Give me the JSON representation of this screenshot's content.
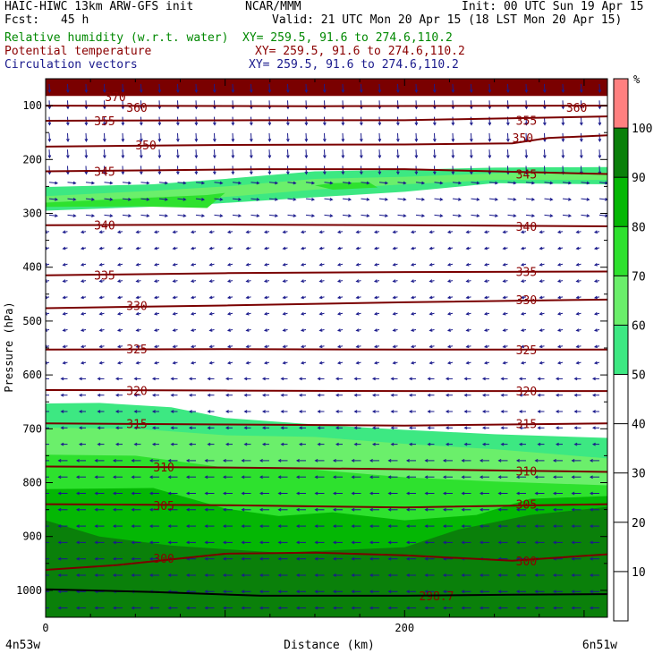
{
  "header": {
    "model": "HAIC-HIWC 13km ARW-GFS init",
    "center": "NCAR/MMM",
    "init": "Init: 00 UTC Sun 19 Apr 15",
    "fcst_label": "Fcst:",
    "fcst_value": "45 h",
    "valid": "Valid: 21 UTC Mon 20 Apr 15 (18 LST Mon 20 Apr 15)",
    "fields": [
      {
        "name": "Relative humidity (w.r.t. water)",
        "xy": "XY= 259.5, 91.6 to 274.6,110.2",
        "color": "#008800"
      },
      {
        "name": "Potential temperature",
        "xy": "XY= 259.5, 91.6 to 274.6,110.2",
        "color": "#8b0000"
      },
      {
        "name": "Circulation vectors",
        "xy": "XY= 259.5, 91.6 to 274.6,110.2",
        "color": "#1a1a8c"
      }
    ]
  },
  "chart_data": {
    "type": "contour",
    "xlabel": "Distance (km)",
    "ylabel": "Pressure (hPa)",
    "xlim": [
      0,
      313
    ],
    "ylim": [
      1050,
      50
    ],
    "x_ticks": [
      0,
      200
    ],
    "y_ticks": [
      100,
      200,
      300,
      400,
      500,
      600,
      700,
      800,
      900,
      1000
    ],
    "x_endpoints": [
      "4n53w",
      "6n51w"
    ],
    "colorbar": {
      "unit": "%",
      "levels": [
        10,
        20,
        30,
        40,
        50,
        60,
        70,
        80,
        90,
        100
      ],
      "colors": [
        "#ffffff",
        "#ffffff",
        "#ffffff",
        "#ffffff",
        "#ffffff",
        "#3de882",
        "#6bef6b",
        "#2ee12e",
        "#04b704",
        "#0a800a",
        "#ff8080"
      ]
    },
    "rh_bands": [
      {
        "range": "50-60",
        "color": "#3de882",
        "polys": [
          [
            [
              0,
              251
            ],
            [
              60,
              246
            ],
            [
              100,
              236
            ],
            [
              150,
              222
            ],
            [
              200,
              219
            ],
            [
              250,
              215
            ],
            [
              313,
              214
            ],
            [
              313,
              246
            ],
            [
              250,
              244
            ],
            [
              200,
              260
            ],
            [
              150,
              270
            ],
            [
              80,
              285
            ],
            [
              0,
              295
            ]
          ],
          [
            [
              0,
              653
            ],
            [
              30,
              652
            ],
            [
              70,
              660
            ],
            [
              100,
              680
            ],
            [
              150,
              692
            ],
            [
              200,
              702
            ],
            [
              250,
              710
            ],
            [
              313,
              717
            ],
            [
              313,
              1050
            ],
            [
              0,
              1050
            ]
          ]
        ]
      },
      {
        "range": "60-70",
        "color": "#6bef6b",
        "polys": [
          [
            [
              0,
              268
            ],
            [
              60,
              258
            ],
            [
              100,
              250
            ],
            [
              150,
              236
            ],
            [
              200,
              232
            ],
            [
              250,
              226
            ],
            [
              313,
              224
            ],
            [
              313,
              238
            ],
            [
              250,
              238
            ],
            [
              200,
              246
            ],
            [
              150,
              256
            ],
            [
              80,
              275
            ],
            [
              0,
              282
            ]
          ],
          [
            [
              0,
              698
            ],
            [
              50,
              700
            ],
            [
              100,
              712
            ],
            [
              150,
              715
            ],
            [
              200,
              728
            ],
            [
              250,
              738
            ],
            [
              313,
              755
            ],
            [
              313,
              1050
            ],
            [
              0,
              1050
            ]
          ]
        ]
      },
      {
        "range": "70-80",
        "color": "#2ee12e",
        "polys": [
          [
            [
              0,
              280
            ],
            [
              50,
              272
            ],
            [
              90,
              266
            ],
            [
              100,
              262
            ],
            [
              90,
              290
            ],
            [
              50,
              287
            ],
            [
              0,
              288
            ]
          ],
          [
            [
              0,
              748
            ],
            [
              50,
              750
            ],
            [
              100,
              772
            ],
            [
              150,
              776
            ],
            [
              200,
              790
            ],
            [
              250,
              798
            ],
            [
              313,
              805
            ],
            [
              313,
              1050
            ],
            [
              0,
              1050
            ]
          ],
          [
            [
              150,
              248
            ],
            [
              160,
              244
            ],
            [
              180,
              242
            ],
            [
              185,
              252
            ],
            [
              160,
              256
            ]
          ]
        ]
      },
      {
        "range": "80-90",
        "color": "#04b704",
        "polys": [
          [
            [
              0,
              812
            ],
            [
              60,
              810
            ],
            [
              100,
              848
            ],
            [
              130,
              862
            ],
            [
              160,
              855
            ],
            [
              200,
              870
            ],
            [
              240,
              860
            ],
            [
              270,
              830
            ],
            [
              313,
              825
            ],
            [
              313,
              1050
            ],
            [
              0,
              1050
            ]
          ]
        ]
      },
      {
        "range": "90-100",
        "color": "#0a800a",
        "polys": [
          [
            [
              0,
              870
            ],
            [
              30,
              900
            ],
            [
              70,
              917
            ],
            [
              130,
              930
            ],
            [
              200,
              920
            ],
            [
              230,
              887
            ],
            [
              270,
              860
            ],
            [
              313,
              845
            ],
            [
              313,
              1050
            ],
            [
              0,
              1050
            ]
          ]
        ]
      },
      {
        "range": "100+",
        "color": "#7a0000",
        "polys": [
          [
            [
              0,
              50
            ],
            [
              313,
              50
            ],
            [
              313,
              82
            ],
            [
              0,
              82
            ]
          ]
        ]
      }
    ],
    "theta_contours": [
      {
        "label": "370",
        "points": [
          [
            0,
            78
          ],
          [
            313,
            78
          ]
        ],
        "label_at": [
          [
            33,
            83
          ]
        ]
      },
      {
        "label": "360",
        "points": [
          [
            0,
            100
          ],
          [
            150,
            101
          ],
          [
            313,
            100
          ]
        ],
        "label_at": [
          [
            45,
            103
          ],
          [
            290,
            103
          ]
        ]
      },
      {
        "label": "355",
        "points": [
          [
            0,
            128
          ],
          [
            120,
            127
          ],
          [
            200,
            127
          ],
          [
            313,
            120
          ]
        ],
        "label_at": [
          [
            27,
            128
          ],
          [
            262,
            127
          ]
        ]
      },
      {
        "label": "350",
        "points": [
          [
            0,
            176
          ],
          [
            100,
            173
          ],
          [
            200,
            172
          ],
          [
            260,
            170
          ],
          [
            280,
            160
          ],
          [
            313,
            155
          ]
        ],
        "label_at": [
          [
            50,
            173
          ],
          [
            260,
            160
          ]
        ]
      },
      {
        "label": "345",
        "points": [
          [
            0,
            222
          ],
          [
            60,
            220
          ],
          [
            120,
            218
          ],
          [
            200,
            218
          ],
          [
            250,
            222
          ],
          [
            313,
            227
          ]
        ],
        "label_at": [
          [
            27,
            222
          ],
          [
            262,
            227
          ]
        ]
      },
      {
        "label": "340",
        "points": [
          [
            0,
            322
          ],
          [
            100,
            321
          ],
          [
            200,
            322
          ],
          [
            313,
            324
          ]
        ],
        "label_at": [
          [
            27,
            322
          ],
          [
            262,
            324
          ]
        ]
      },
      {
        "label": "335",
        "points": [
          [
            0,
            415
          ],
          [
            100,
            411
          ],
          [
            200,
            409
          ],
          [
            313,
            408
          ]
        ],
        "label_at": [
          [
            27,
            415
          ],
          [
            262,
            408
          ]
        ]
      },
      {
        "label": "330",
        "points": [
          [
            0,
            476
          ],
          [
            100,
            471
          ],
          [
            200,
            465
          ],
          [
            313,
            460
          ]
        ],
        "label_at": [
          [
            45,
            471
          ],
          [
            262,
            460
          ]
        ]
      },
      {
        "label": "325",
        "points": [
          [
            0,
            553
          ],
          [
            100,
            552
          ],
          [
            200,
            553
          ],
          [
            313,
            553
          ]
        ],
        "label_at": [
          [
            45,
            552
          ],
          [
            262,
            553
          ]
        ]
      },
      {
        "label": "320",
        "points": [
          [
            0,
            628
          ],
          [
            100,
            629
          ],
          [
            200,
            630
          ],
          [
            313,
            630
          ]
        ],
        "label_at": [
          [
            45,
            629
          ],
          [
            262,
            630
          ]
        ]
      },
      {
        "label": "315",
        "points": [
          [
            0,
            690
          ],
          [
            100,
            692
          ],
          [
            200,
            694
          ],
          [
            313,
            690
          ]
        ],
        "label_at": [
          [
            45,
            690
          ],
          [
            262,
            690
          ]
        ]
      },
      {
        "label": "310",
        "points": [
          [
            0,
            770
          ],
          [
            100,
            772
          ],
          [
            200,
            775
          ],
          [
            313,
            780
          ]
        ],
        "label_at": [
          [
            60,
            771
          ],
          [
            262,
            778
          ]
        ]
      },
      {
        "label": "305",
        "points": [
          [
            0,
            840
          ],
          [
            100,
            842
          ],
          [
            200,
            846
          ],
          [
            313,
            840
          ]
        ],
        "label_at": [
          [
            60,
            842
          ],
          [
            262,
            840
          ]
        ]
      },
      {
        "label": "300",
        "points": [
          [
            0,
            962
          ],
          [
            40,
            953
          ],
          [
            100,
            932
          ],
          [
            150,
            930
          ],
          [
            200,
            935
          ],
          [
            260,
            945
          ],
          [
            313,
            933
          ]
        ],
        "label_at": [
          [
            60,
            940
          ],
          [
            262,
            945
          ]
        ]
      },
      {
        "label": "298.7",
        "points": [],
        "label_at": [
          [
            208,
            1010
          ]
        ]
      }
    ],
    "terrain": {
      "points": [
        [
          0,
          998
        ],
        [
          60,
          1003
        ],
        [
          120,
          1010
        ],
        [
          200,
          1010
        ],
        [
          260,
          1008
        ],
        [
          313,
          1007
        ]
      ],
      "color": "#000000"
    }
  }
}
